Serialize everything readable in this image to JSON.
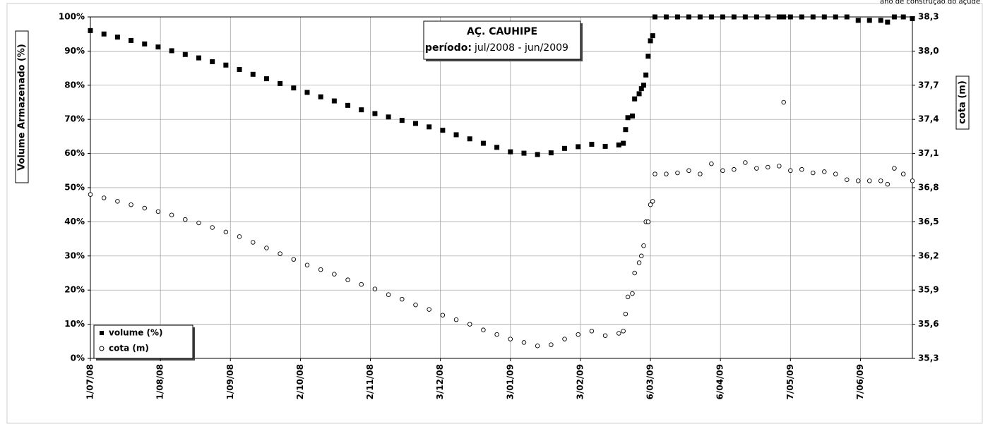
{
  "chart_data": {
    "type": "scatter",
    "title": "AÇ. CAUHIPE",
    "subtitle_label": "período:",
    "subtitle": "jul/2008 - jun/2009",
    "annotation": "ano de construção do açude",
    "ylabel": "Volume Armazenado (%)",
    "y2label": "cota (m)",
    "grid": true,
    "legend": "lower left",
    "x": [
      "2008-07-01",
      "2008-07-07",
      "2008-07-13",
      "2008-07-19",
      "2008-07-25",
      "2008-07-31",
      "2008-08-06",
      "2008-08-12",
      "2008-08-18",
      "2008-08-24",
      "2008-08-30",
      "2008-09-05",
      "2008-09-11",
      "2008-09-17",
      "2008-09-23",
      "2008-09-29",
      "2008-10-05",
      "2008-10-11",
      "2008-10-17",
      "2008-10-23",
      "2008-10-29",
      "2008-11-04",
      "2008-11-10",
      "2008-11-16",
      "2008-11-22",
      "2008-11-28",
      "2008-12-04",
      "2008-12-10",
      "2008-12-16",
      "2008-12-22",
      "2008-12-28",
      "2009-01-03",
      "2009-01-09",
      "2009-01-15",
      "2009-01-21",
      "2009-01-27",
      "2009-02-02",
      "2009-02-08",
      "2009-02-14",
      "2009-02-20",
      "2009-02-22",
      "2009-02-23",
      "2009-02-24",
      "2009-02-26",
      "2009-02-27",
      "2009-03-01",
      "2009-03-02",
      "2009-03-03",
      "2009-03-04",
      "2009-03-05",
      "2009-03-06",
      "2009-03-07",
      "2009-03-08",
      "2009-03-13",
      "2009-03-18",
      "2009-03-23",
      "2009-03-28",
      "2009-04-02",
      "2009-04-07",
      "2009-04-12",
      "2009-04-17",
      "2009-04-22",
      "2009-04-27",
      "2009-05-02",
      "2009-05-04",
      "2009-05-07",
      "2009-05-12",
      "2009-05-17",
      "2009-05-22",
      "2009-05-27",
      "2009-06-01",
      "2009-06-06",
      "2009-06-11",
      "2009-06-16",
      "2009-06-19",
      "2009-06-22",
      "2009-06-26",
      "2009-06-30"
    ],
    "series": [
      {
        "name": "volume (%)",
        "color": "#000000",
        "marker": "square",
        "values": [
          96,
          95,
          94.1,
          93.1,
          92.1,
          91.2,
          90.1,
          89,
          88,
          86.9,
          85.9,
          84.6,
          83.2,
          81.9,
          80.5,
          79.2,
          77.9,
          76.6,
          75.4,
          74.1,
          72.8,
          71.7,
          70.7,
          69.7,
          68.8,
          67.8,
          66.8,
          65.5,
          64.3,
          63,
          61.8,
          60.5,
          60.1,
          59.7,
          60.2,
          61.5,
          62,
          62.7,
          62.1,
          62.5,
          63,
          67,
          70.5,
          71,
          76,
          77.5,
          79,
          80,
          83,
          88.5,
          93,
          94.5,
          100,
          100,
          100,
          100,
          100,
          100,
          100,
          100,
          100,
          100,
          100,
          100,
          100,
          100,
          100,
          100,
          100,
          100,
          100,
          99,
          99,
          99,
          98.5,
          100,
          100,
          99.5
        ]
      },
      {
        "name": "cota (m)",
        "color": "#000000",
        "marker": "circle",
        "axis": "y2",
        "values": [
          36.74,
          36.71,
          36.68,
          36.65,
          36.62,
          36.59,
          36.56,
          36.52,
          36.49,
          36.45,
          36.41,
          36.37,
          36.32,
          36.27,
          36.22,
          36.17,
          36.12,
          36.08,
          36.04,
          35.99,
          35.95,
          35.91,
          35.86,
          35.82,
          35.77,
          35.73,
          35.68,
          35.64,
          35.6,
          35.55,
          35.51,
          35.47,
          35.44,
          35.41,
          35.42,
          35.47,
          35.51,
          35.54,
          35.5,
          35.52,
          35.54,
          35.69,
          35.84,
          35.87,
          36.05,
          36.14,
          36.2,
          36.29,
          36.5,
          36.5,
          36.65,
          36.68,
          36.92,
          36.92,
          36.93,
          36.95,
          36.92,
          37.01,
          36.95,
          36.96,
          37.02,
          36.97,
          36.98,
          36.99,
          37.55,
          36.95,
          36.96,
          36.93,
          36.94,
          36.92,
          36.87,
          36.86,
          36.86,
          36.86,
          36.83,
          36.97,
          36.92,
          36.86
        ]
      }
    ],
    "xlim": [
      "2008-07-01",
      "2009-06-30"
    ],
    "xticks": [
      {
        "value": "2008-07-01",
        "label": "1/07/08"
      },
      {
        "value": "2008-08-01",
        "label": "1/08/08"
      },
      {
        "value": "2008-09-01",
        "label": "1/09/08"
      },
      {
        "value": "2008-10-02",
        "label": "2/10/08"
      },
      {
        "value": "2008-11-02",
        "label": "2/11/08"
      },
      {
        "value": "2008-12-03",
        "label": "3/12/08"
      },
      {
        "value": "2009-01-03",
        "label": "3/01/09"
      },
      {
        "value": "2009-02-03",
        "label": "3/02/09"
      },
      {
        "value": "2009-03-06",
        "label": "6/03/09"
      },
      {
        "value": "2009-04-06",
        "label": "6/04/09"
      },
      {
        "value": "2009-05-07",
        "label": "7/05/09"
      },
      {
        "value": "2009-06-07",
        "label": "7/06/09"
      }
    ],
    "ylim": [
      0,
      100
    ],
    "yticks": [
      {
        "value": 0,
        "label": "0%"
      },
      {
        "value": 10,
        "label": "10%"
      },
      {
        "value": 20,
        "label": "20%"
      },
      {
        "value": 30,
        "label": "30%"
      },
      {
        "value": 40,
        "label": "40%"
      },
      {
        "value": 50,
        "label": "50%"
      },
      {
        "value": 60,
        "label": "60%"
      },
      {
        "value": 70,
        "label": "70%"
      },
      {
        "value": 80,
        "label": "80%"
      },
      {
        "value": 90,
        "label": "90%"
      },
      {
        "value": 100,
        "label": "100%"
      }
    ],
    "y2lim": [
      35.3,
      38.3
    ],
    "y2ticks": [
      {
        "value": 35.3,
        "label": "35,3"
      },
      {
        "value": 35.6,
        "label": "35,6"
      },
      {
        "value": 35.9,
        "label": "35,9"
      },
      {
        "value": 36.2,
        "label": "36,2"
      },
      {
        "value": 36.5,
        "label": "36,5"
      },
      {
        "value": 36.8,
        "label": "36,8"
      },
      {
        "value": 37.1,
        "label": "37,1"
      },
      {
        "value": 37.4,
        "label": "37,4"
      },
      {
        "value": 37.7,
        "label": "37,7"
      },
      {
        "value": 38.0,
        "label": "38,0"
      },
      {
        "value": 38.3,
        "label": "38,3"
      }
    ]
  }
}
